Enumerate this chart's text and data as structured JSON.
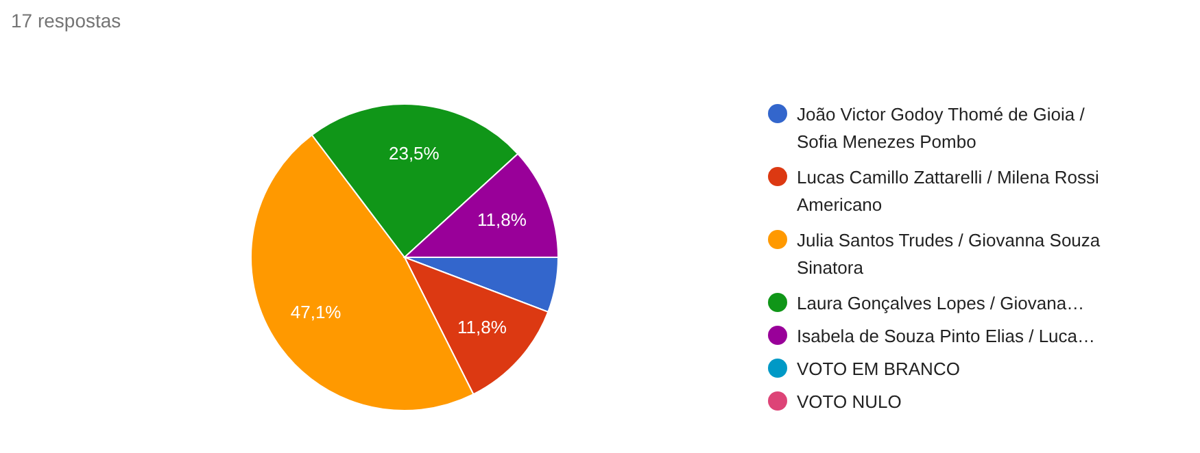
{
  "chart_data": {
    "type": "pie",
    "title": "17 respostas",
    "categories": [
      "João Victor Godoy Thomé de Gioia / Sofia Menezes Pombo",
      "Lucas Camillo Zattarelli / Milena Rossi Americano",
      "Julia Santos Trudes / Giovanna Souza Sinatora",
      "Laura Gonçalves Lopes / Giovana…",
      "Isabela de Souza Pinto Elias / Luca…",
      "VOTO EM BRANCO",
      "VOTO NULO"
    ],
    "values": [
      5.8,
      11.8,
      47.1,
      23.5,
      11.8,
      0,
      0
    ],
    "colors": [
      "#3366cc",
      "#dc3912",
      "#ff9900",
      "#109618",
      "#990099",
      "#0099c6",
      "#dd4477"
    ],
    "value_labels": [
      null,
      "11,8%",
      "47,1%",
      "23,5%",
      "11,8%",
      null,
      null
    ],
    "legend": "right"
  }
}
